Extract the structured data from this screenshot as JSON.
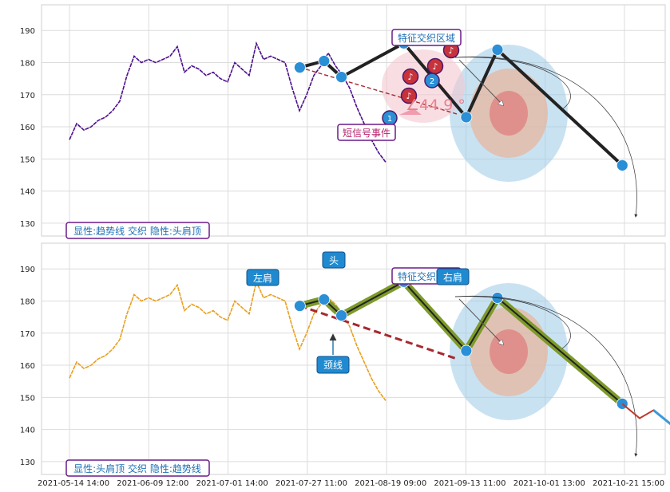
{
  "chart_data": [
    {
      "type": "line",
      "panel": "top",
      "ylim": [
        126,
        198
      ],
      "y_ticks": [
        130,
        140,
        150,
        160,
        170,
        180,
        190
      ],
      "x_tick_labels": [
        "2021-05-14 14:00",
        "2021-06-09 12:00",
        "2021-07-01 14:00",
        "2021-07-27 11:00",
        "2021-08-19 09:00",
        "2021-09-13 11:00",
        "2021-10-01 13:00",
        "2021-10-21 15:00"
      ],
      "grid": true,
      "price_color": "#4b0f8c",
      "series": [
        {
          "values": [
            156,
            161,
            159,
            160,
            162,
            163,
            165,
            168,
            176,
            182,
            180,
            181,
            180,
            181,
            182,
            185,
            177,
            179,
            178,
            176,
            177,
            175,
            174,
            180,
            178,
            176,
            186,
            181,
            182,
            181,
            180,
            172,
            165,
            170,
            176,
            179,
            183,
            179,
            176,
            172,
            166,
            161,
            156,
            152,
            149
          ]
        }
      ],
      "pivots": [
        {
          "x": "2021-07-20",
          "y": 178.5
        },
        {
          "x": "2021-07-27",
          "y": 180.5
        },
        {
          "x": "2021-08-01",
          "y": 175.5
        },
        {
          "x": "2021-08-19",
          "y": 186
        },
        {
          "x": "2021-09-06",
          "y": 163
        },
        {
          "x": "2021-09-15",
          "y": 184
        },
        {
          "x": "2021-10-21",
          "y": 148
        }
      ],
      "annotations": {
        "event_label": "短信号事件",
        "zone_label": "特征交织区域",
        "angle_label": "∠44.9 °",
        "event_number_1": "1",
        "event_number_2": "2",
        "note_glyph": "♪",
        "bottom_label": "显性:趋势线 交织 隐性:头肩顶"
      }
    },
    {
      "type": "line",
      "panel": "bottom",
      "ylim": [
        126,
        198
      ],
      "y_ticks": [
        130,
        140,
        150,
        160,
        170,
        180,
        190
      ],
      "x_tick_labels": [
        "2021-05-14 14:00",
        "2021-06-09 12:00",
        "2021-07-01 14:00",
        "2021-07-27 11:00",
        "2021-08-19 09:00",
        "2021-09-13 11:00",
        "2021-10-01 13:00",
        "2021-10-21 15:00"
      ],
      "grid": true,
      "price_color": "#e8a020",
      "series": [
        {
          "values": [
            156,
            161,
            159,
            160,
            162,
            163,
            165,
            168,
            176,
            182,
            180,
            181,
            180,
            181,
            182,
            185,
            177,
            179,
            178,
            176,
            177,
            175,
            174,
            180,
            178,
            176,
            186,
            181,
            182,
            181,
            180,
            172,
            165,
            170,
            176,
            179,
            181,
            179,
            176,
            172,
            166,
            161,
            156,
            152,
            149
          ]
        }
      ],
      "pivots": [
        {
          "x": "2021-07-20",
          "y": 178.5
        },
        {
          "x": "2021-07-27",
          "y": 180.5
        },
        {
          "x": "2021-08-01",
          "y": 175.5
        },
        {
          "x": "2021-08-19",
          "y": 186
        },
        {
          "x": "2021-09-06",
          "y": 164.5
        },
        {
          "x": "2021-09-15",
          "y": 181
        },
        {
          "x": "2021-10-21",
          "y": 148
        }
      ],
      "projection": [
        {
          "x": "2021-10-21",
          "y": 148
        },
        {
          "x": "2021-10-26",
          "y": 143.5
        },
        {
          "x": "2021-10-30",
          "y": 146
        },
        {
          "x": "2021-11-15",
          "y": 132
        }
      ],
      "annotations": {
        "left_shoulder": "左肩",
        "head": "头",
        "right_shoulder": "右肩",
        "neckline": "颈线",
        "zone_label": "特征交织区域",
        "bottom_label": "显性:头肩顶 交织 隐性:趋势线"
      }
    }
  ]
}
